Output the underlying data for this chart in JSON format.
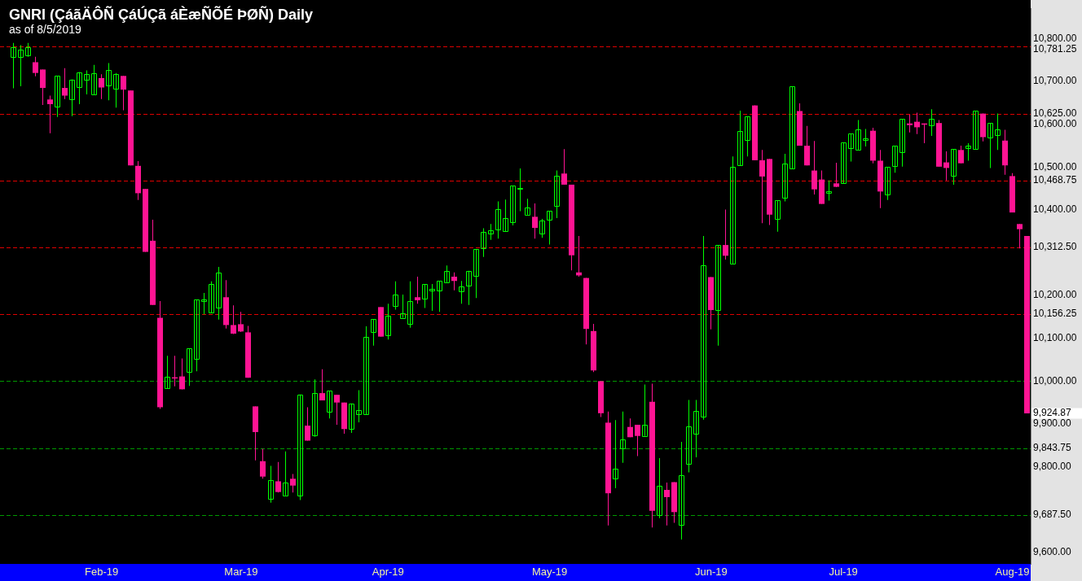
{
  "chart_data": {
    "type": "candlestick",
    "title": "GNRI (ÇáãÄÔÑ ÇáÚÇã áÈæÑÕÉ ÞØÑ) Daily",
    "subtitle": "as of 8/5/2019",
    "categories": [
      null,
      null,
      null,
      null,
      null,
      null,
      null,
      null,
      null,
      null,
      null,
      null,
      "Feb-19",
      null,
      null,
      null,
      null,
      null,
      null,
      null,
      null,
      null,
      null,
      null,
      null,
      null,
      null,
      null,
      null,
      null,
      null,
      "Mar-19",
      null,
      null,
      null,
      null,
      null,
      null,
      null,
      null,
      null,
      null,
      null,
      null,
      null,
      null,
      null,
      null,
      null,
      null,
      null,
      "Apr-19",
      null,
      null,
      null,
      null,
      null,
      null,
      null,
      null,
      null,
      null,
      null,
      null,
      null,
      null,
      null,
      null,
      null,
      null,
      null,
      null,
      null,
      "May-19",
      null,
      null,
      null,
      null,
      null,
      null,
      null,
      null,
      null,
      null,
      null,
      null,
      null,
      null,
      null,
      null,
      null,
      null,
      null,
      null,
      null,
      "Jun-19",
      null,
      null,
      null,
      null,
      null,
      null,
      null,
      null,
      null,
      null,
      null,
      null,
      null,
      null,
      null,
      null,
      null,
      "Jul-19",
      null,
      null,
      null,
      null,
      null,
      null,
      null,
      null,
      null,
      null,
      null,
      null,
      null,
      null,
      null,
      null,
      null,
      null,
      null,
      null,
      null,
      null,
      "Aug-19",
      null,
      null
    ],
    "ohlc": [
      [
        10758,
        10790,
        10684,
        10780
      ],
      [
        10758,
        10785,
        10689,
        10775
      ],
      [
        10762,
        10790,
        10758,
        10780
      ],
      [
        10745,
        10758,
        10712,
        10720
      ],
      [
        10728,
        10728,
        10645,
        10685
      ],
      [
        10658,
        10667,
        10579,
        10647
      ],
      [
        10642,
        10713,
        10617,
        10713
      ],
      [
        10685,
        10731,
        10659,
        10667
      ],
      [
        10659,
        10705,
        10619,
        10705
      ],
      [
        10687,
        10722,
        10647,
        10722
      ],
      [
        10704,
        10726,
        10670,
        10718
      ],
      [
        10670,
        10739,
        10670,
        10720
      ],
      [
        10708,
        10717,
        10659,
        10686
      ],
      [
        10690,
        10743,
        10656,
        10727
      ],
      [
        10684,
        10720,
        10639,
        10717
      ],
      [
        10713,
        10713,
        10633,
        10681
      ],
      [
        10679,
        10679,
        10504,
        10504
      ],
      [
        10503,
        10514,
        10423,
        10439
      ],
      [
        10449,
        10449,
        10302,
        10302
      ],
      [
        10328,
        10377,
        10178,
        10178
      ],
      [
        10148,
        10187,
        9935,
        9939
      ],
      [
        9984,
        10059,
        9983,
        10010
      ],
      [
        10009,
        10059,
        9988,
        10008
      ],
      [
        10011,
        10053,
        9981,
        9981
      ],
      [
        10021,
        10077,
        9989,
        10077
      ],
      [
        10052,
        10191,
        10023,
        10191
      ],
      [
        10187,
        10206,
        10156,
        10191
      ],
      [
        10161,
        10233,
        10160,
        10227
      ],
      [
        10171,
        10267,
        10144,
        10254
      ],
      [
        10196,
        10236,
        10123,
        10131
      ],
      [
        10131,
        10177,
        10110,
        10111
      ],
      [
        10133,
        10162,
        10115,
        10116
      ],
      [
        10114,
        10129,
        10008,
        10008
      ],
      [
        9941,
        9941,
        9815,
        9881
      ],
      [
        9813,
        9842,
        9772,
        9777
      ],
      [
        9725,
        9802,
        9716,
        9768
      ],
      [
        9766,
        9811,
        9740,
        9741
      ],
      [
        9733,
        9836,
        9733,
        9763
      ],
      [
        9772,
        9783,
        9740,
        9756
      ],
      [
        9733,
        9969,
        9722,
        9969
      ],
      [
        9896,
        9939,
        9861,
        9861
      ],
      [
        9874,
        10004,
        9870,
        9972
      ],
      [
        9972,
        10028,
        9955,
        9955
      ],
      [
        9928,
        9977,
        9913,
        9977
      ],
      [
        9968,
        9968,
        9898,
        9950
      ],
      [
        9950,
        9950,
        9877,
        9888
      ],
      [
        9889,
        9948,
        9879,
        9948
      ],
      [
        9922,
        9979,
        9904,
        9933
      ],
      [
        9922,
        10128,
        9922,
        10103
      ],
      [
        10114,
        10145,
        10083,
        10145
      ],
      [
        10173,
        10173,
        10104,
        10104
      ],
      [
        10108,
        10181,
        10097,
        10153
      ],
      [
        10175,
        10233,
        10167,
        10202
      ],
      [
        10148,
        10202,
        10148,
        10159
      ],
      [
        10133,
        10233,
        10125,
        10187
      ],
      [
        10196,
        10244,
        10181,
        10189
      ],
      [
        10192,
        10227,
        10171,
        10227
      ],
      [
        10212,
        10227,
        10164,
        10216
      ],
      [
        10212,
        10234,
        10162,
        10234
      ],
      [
        10231,
        10270,
        10231,
        10257
      ],
      [
        10244,
        10254,
        10212,
        10234
      ],
      [
        10209,
        10234,
        10181,
        10221
      ],
      [
        10223,
        10258,
        10178,
        10258
      ],
      [
        10246,
        10308,
        10194,
        10308
      ],
      [
        10310,
        10357,
        10290,
        10348
      ],
      [
        10344,
        10367,
        10330,
        10353
      ],
      [
        10355,
        10420,
        10333,
        10401
      ],
      [
        10350,
        10424,
        10350,
        10381
      ],
      [
        10372,
        10457,
        10364,
        10457
      ],
      [
        10449,
        10497,
        10397,
        10452
      ],
      [
        10389,
        10426,
        10389,
        10406
      ],
      [
        10384,
        10415,
        10333,
        10358
      ],
      [
        10344,
        10379,
        10335,
        10376
      ],
      [
        10378,
        10398,
        10319,
        10398
      ],
      [
        10410,
        10492,
        10381,
        10479
      ],
      [
        10485,
        10542,
        10459,
        10459
      ],
      [
        10459,
        10459,
        10259,
        10294
      ],
      [
        10254,
        10339,
        10244,
        10247
      ],
      [
        10241,
        10241,
        10086,
        10122
      ],
      [
        10117,
        10134,
        10021,
        10025
      ],
      [
        10000,
        10000,
        9916,
        9925
      ],
      [
        9903,
        9929,
        9663,
        9738
      ],
      [
        9772,
        9909,
        9750,
        9796
      ],
      [
        9842,
        9929,
        9809,
        9864
      ],
      [
        9893,
        9913,
        9869,
        9869
      ],
      [
        9898,
        9898,
        9825,
        9872
      ],
      [
        9872,
        9992,
        9872,
        9898
      ],
      [
        9952,
        9994,
        9658,
        9697
      ],
      [
        9688,
        9820,
        9680,
        9756
      ],
      [
        9746,
        9763,
        9663,
        9729
      ],
      [
        9764,
        9764,
        9669,
        9694
      ],
      [
        9665,
        9858,
        9630,
        9781
      ],
      [
        9806,
        9956,
        9787,
        9894
      ],
      [
        9877,
        9956,
        9822,
        9930
      ],
      [
        9918,
        10339,
        9910,
        10270
      ],
      [
        10243,
        10243,
        10121,
        10166
      ],
      [
        10166,
        10318,
        10083,
        10318
      ],
      [
        10318,
        10401,
        10284,
        10293
      ],
      [
        10274,
        10525,
        10274,
        10501
      ],
      [
        10504,
        10632,
        10504,
        10584
      ],
      [
        10564,
        10619,
        10525,
        10619
      ],
      [
        10644,
        10644,
        10516,
        10516
      ],
      [
        10516,
        10540,
        10369,
        10478
      ],
      [
        10519,
        10519,
        10365,
        10389
      ],
      [
        10379,
        10422,
        10349,
        10422
      ],
      [
        10429,
        10531,
        10420,
        10508
      ],
      [
        10496,
        10688,
        10496,
        10688
      ],
      [
        10631,
        10649,
        10550,
        10550
      ],
      [
        10550,
        10596,
        10504,
        10504
      ],
      [
        10492,
        10561,
        10436,
        10448
      ],
      [
        10471,
        10492,
        10414,
        10414
      ],
      [
        10439,
        10469,
        10422,
        10443
      ],
      [
        10462,
        10510,
        10453,
        10454
      ],
      [
        10462,
        10558,
        10462,
        10558
      ],
      [
        10545,
        10578,
        10513,
        10578
      ],
      [
        10541,
        10610,
        10540,
        10589
      ],
      [
        10564,
        10589,
        10548,
        10567
      ],
      [
        10585,
        10592,
        10509,
        10515
      ],
      [
        10515,
        10540,
        10404,
        10443
      ],
      [
        10436,
        10500,
        10423,
        10500
      ],
      [
        10502,
        10550,
        10487,
        10550
      ],
      [
        10535,
        10612,
        10501,
        10612
      ],
      [
        10602,
        10623,
        10581,
        10598
      ],
      [
        10606,
        10627,
        10577,
        10593
      ],
      [
        10602,
        10602,
        10556,
        10600
      ],
      [
        10598,
        10635,
        10573,
        10612
      ],
      [
        10603,
        10610,
        10501,
        10501
      ],
      [
        10511,
        10537,
        10469,
        10498
      ],
      [
        10479,
        10542,
        10459,
        10542
      ],
      [
        10540,
        10550,
        10509,
        10509
      ],
      [
        10544,
        10556,
        10515,
        10550
      ],
      [
        10542,
        10631,
        10542,
        10631
      ],
      [
        10625,
        10625,
        10560,
        10570
      ],
      [
        10570,
        10603,
        10498,
        10603
      ],
      [
        10575,
        10625,
        10540,
        10589
      ],
      [
        10562,
        10587,
        10482,
        10504
      ],
      [
        10479,
        10486,
        10394,
        10394
      ],
      [
        10367,
        10367,
        10310,
        10355
      ],
      [
        10339,
        10339,
        9924.87,
        9924.87
      ]
    ],
    "colors": [
      "#00ff00",
      "#00ff00",
      "#00ff00",
      "#ff1493",
      "#ff1493",
      "#ff1493",
      "#00ff00",
      "#ff1493",
      "#00ff00",
      "#00ff00",
      "#00ff00",
      "#00ff00",
      "#ff1493",
      "#00ff00",
      "#00ff00",
      "#ff1493",
      "#ff1493",
      "#ff1493",
      "#ff1493",
      "#ff1493",
      "#ff1493",
      "#00ff00",
      "#ff1493",
      "#ff1493",
      "#00ff00",
      "#00ff00",
      "#00ff00",
      "#00ff00",
      "#00ff00",
      "#ff1493",
      "#ff1493",
      "#ff1493",
      "#ff1493",
      "#ff1493",
      "#ff1493",
      "#00ff00",
      "#ff1493",
      "#00ff00",
      "#ff1493",
      "#00ff00",
      "#ff1493",
      "#00ff00",
      "#ff1493",
      "#00ff00",
      "#ff1493",
      "#ff1493",
      "#00ff00",
      "#00ff00",
      "#00ff00",
      "#00ff00",
      "#ff1493",
      "#00ff00",
      "#00ff00",
      "#00ff00",
      "#00ff00",
      "#ff1493",
      "#00ff00",
      "#00ff00",
      "#00ff00",
      "#00ff00",
      "#ff1493",
      "#00ff00",
      "#00ff00",
      "#00ff00",
      "#00ff00",
      "#00ff00",
      "#00ff00",
      "#00ff00",
      "#00ff00",
      "#00ff00",
      "#00ff00",
      "#ff1493",
      "#00ff00",
      "#00ff00",
      "#00ff00",
      "#ff1493",
      "#ff1493",
      "#ff1493",
      "#ff1493",
      "#ff1493",
      "#ff1493",
      "#ff1493",
      "#00ff00",
      "#00ff00",
      "#ff1493",
      "#ff1493",
      "#00ff00",
      "#ff1493",
      "#00ff00",
      "#ff1493",
      "#ff1493",
      "#00ff00",
      "#00ff00",
      "#00ff00",
      "#00ff00",
      "#ff1493",
      "#00ff00",
      "#ff1493",
      "#00ff00",
      "#00ff00",
      "#00ff00",
      "#ff1493",
      "#ff1493",
      "#ff1493",
      "#00ff00",
      "#00ff00",
      "#00ff00",
      "#ff1493",
      "#ff1493",
      "#ff1493",
      "#ff1493",
      "#00ff00",
      "#ff1493",
      "#00ff00",
      "#00ff00",
      "#00ff00",
      "#00ff00",
      "#ff1493",
      "#ff1493",
      "#00ff00",
      "#00ff00",
      "#00ff00",
      "#ff1493",
      "#ff1493",
      "#ff1493",
      "#00ff00",
      "#ff1493",
      "#ff1493",
      "#00ff00",
      "#ff1493",
      "#00ff00",
      "#00ff00",
      "#ff1493",
      "#00ff00",
      "#00ff00",
      "#ff1493",
      "#ff1493",
      "#ff1493",
      "#ff1493"
    ],
    "ylim": [
      9573,
      10871
    ],
    "yticks": [
      {
        "value": 9600,
        "label": "9,600.00"
      },
      {
        "value": 9800,
        "label": "9,800.00"
      },
      {
        "value": 9900,
        "label": "9,900.00"
      },
      {
        "value": 10000,
        "label": "10,000.00"
      },
      {
        "value": 10100,
        "label": "10,100.00"
      },
      {
        "value": 10200,
        "label": "10,200.00"
      },
      {
        "value": 10400,
        "label": "10,400.00"
      },
      {
        "value": 10500,
        "label": "10,500.00"
      },
      {
        "value": 10600,
        "label": "10,600.00"
      },
      {
        "value": 10700,
        "label": "10,700.00"
      },
      {
        "value": 10800,
        "label": "10,800.00"
      }
    ],
    "ref_lines": [
      {
        "axis": "y",
        "value": 10781.25,
        "label": "10,781.25",
        "color": "#e00000",
        "line_style": "dashed"
      },
      {
        "axis": "y",
        "value": 10625,
        "label": "10,625.00",
        "color": "#e00000",
        "line_style": "dashed"
      },
      {
        "axis": "y",
        "value": 10468.75,
        "label": "10,468.75",
        "color": "#e00000",
        "line_style": "dashed"
      },
      {
        "axis": "y",
        "value": 10312.5,
        "label": "10,312.50",
        "color": "#e00000",
        "line_style": "dashed"
      },
      {
        "axis": "y",
        "value": 10156.25,
        "label": "10,156.25",
        "color": "#e00000",
        "line_style": "dashed"
      },
      {
        "axis": "y",
        "value": 10000,
        "color": "#009900",
        "line_style": "dashed"
      },
      {
        "axis": "y",
        "value": 9843.75,
        "label": "9,843.75",
        "color": "#009900",
        "line_style": "dashed"
      },
      {
        "axis": "y",
        "value": 9687.5,
        "label": "9,687.50",
        "color": "#009900",
        "line_style": "dashed"
      }
    ],
    "annotations": [
      "9,924.87"
    ]
  }
}
